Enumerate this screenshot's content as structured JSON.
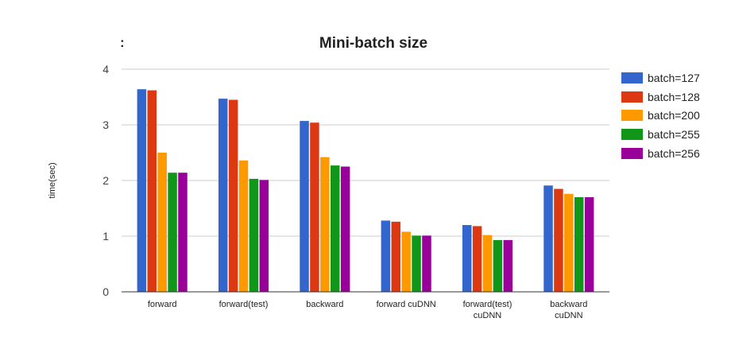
{
  "chart_data": {
    "type": "bar",
    "title": "Mini-batch size",
    "title_prefix": ":",
    "xlabel": "",
    "ylabel": "time(sec)",
    "ylim": [
      0,
      4
    ],
    "yticks": [
      "0",
      "1",
      "2",
      "3",
      "4"
    ],
    "grid": true,
    "legend_position": "right",
    "categories": [
      [
        "forward"
      ],
      [
        "forward(test)"
      ],
      [
        "backward"
      ],
      [
        "forward cuDNN"
      ],
      [
        "forward(test)",
        "cuDNN"
      ],
      [
        "backward",
        "cuDNN"
      ]
    ],
    "series": [
      {
        "name": "batch=127",
        "color": "#3366cc",
        "values": [
          3.64,
          3.47,
          3.07,
          1.28,
          1.2,
          1.91
        ]
      },
      {
        "name": "batch=128",
        "color": "#dc3912",
        "values": [
          3.62,
          3.45,
          3.04,
          1.26,
          1.18,
          1.85
        ]
      },
      {
        "name": "batch=200",
        "color": "#ff9900",
        "values": [
          2.5,
          2.36,
          2.42,
          1.08,
          1.02,
          1.76
        ]
      },
      {
        "name": "batch=255",
        "color": "#109618",
        "values": [
          2.14,
          2.03,
          2.27,
          1.01,
          0.93,
          1.7
        ]
      },
      {
        "name": "batch=256",
        "color": "#990099",
        "values": [
          2.14,
          2.01,
          2.25,
          1.01,
          0.93,
          1.7
        ]
      }
    ]
  }
}
